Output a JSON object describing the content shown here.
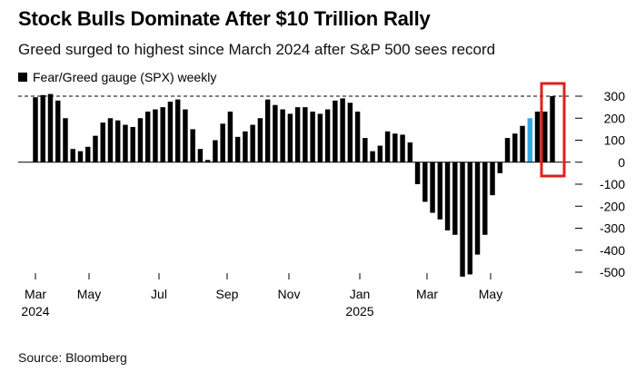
{
  "header": {
    "title": "Stock Bulls Dominate After $10 Trillion Rally",
    "subtitle": "Greed surged to highest since March 2024 after S&P 500 sees record"
  },
  "footer": {
    "source": "Source: Bloomberg"
  },
  "colors": {
    "bar": "#000000",
    "highlight_bar": "#35a8e0",
    "highlight_box": "#e0201b",
    "reference_line": "#000000"
  },
  "chart_data": {
    "type": "bar",
    "legend": [
      "Fear/Greed gauge (SPX) weekly"
    ],
    "legend_position": "top-left",
    "grid": false,
    "xlabel": "",
    "ylabel": "",
    "ylim": [
      -500,
      300
    ],
    "y_ticks": [
      "300",
      "200",
      "100",
      "0",
      "-100",
      "-200",
      "-300",
      "-400",
      "-500"
    ],
    "x_ticks": [
      {
        "label": "Mar",
        "year": "2024"
      },
      {
        "label": "May",
        "year": ""
      },
      {
        "label": "Jul",
        "year": ""
      },
      {
        "label": "Sep",
        "year": ""
      },
      {
        "label": "Nov",
        "year": ""
      },
      {
        "label": "Jan",
        "year": "2025"
      },
      {
        "label": "Mar",
        "year": ""
      },
      {
        "label": "May",
        "year": ""
      }
    ],
    "reference_line": 300,
    "highlighted_index": 66,
    "series": [
      {
        "values": [
          295,
          305,
          310,
          280,
          200,
          60,
          50,
          70,
          120,
          180,
          200,
          190,
          170,
          160,
          200,
          230,
          240,
          250,
          275,
          285,
          240,
          150,
          60,
          10,
          100,
          175,
          230,
          115,
          140,
          170,
          200,
          285,
          260,
          240,
          220,
          250,
          250,
          230,
          220,
          240,
          280,
          290,
          270,
          230,
          110,
          50,
          75,
          140,
          130,
          125,
          90,
          -100,
          -180,
          -230,
          -260,
          -310,
          -330,
          -520,
          -510,
          -420,
          -330,
          -150,
          -50,
          110,
          130,
          165,
          200,
          230,
          230,
          300
        ]
      }
    ]
  }
}
